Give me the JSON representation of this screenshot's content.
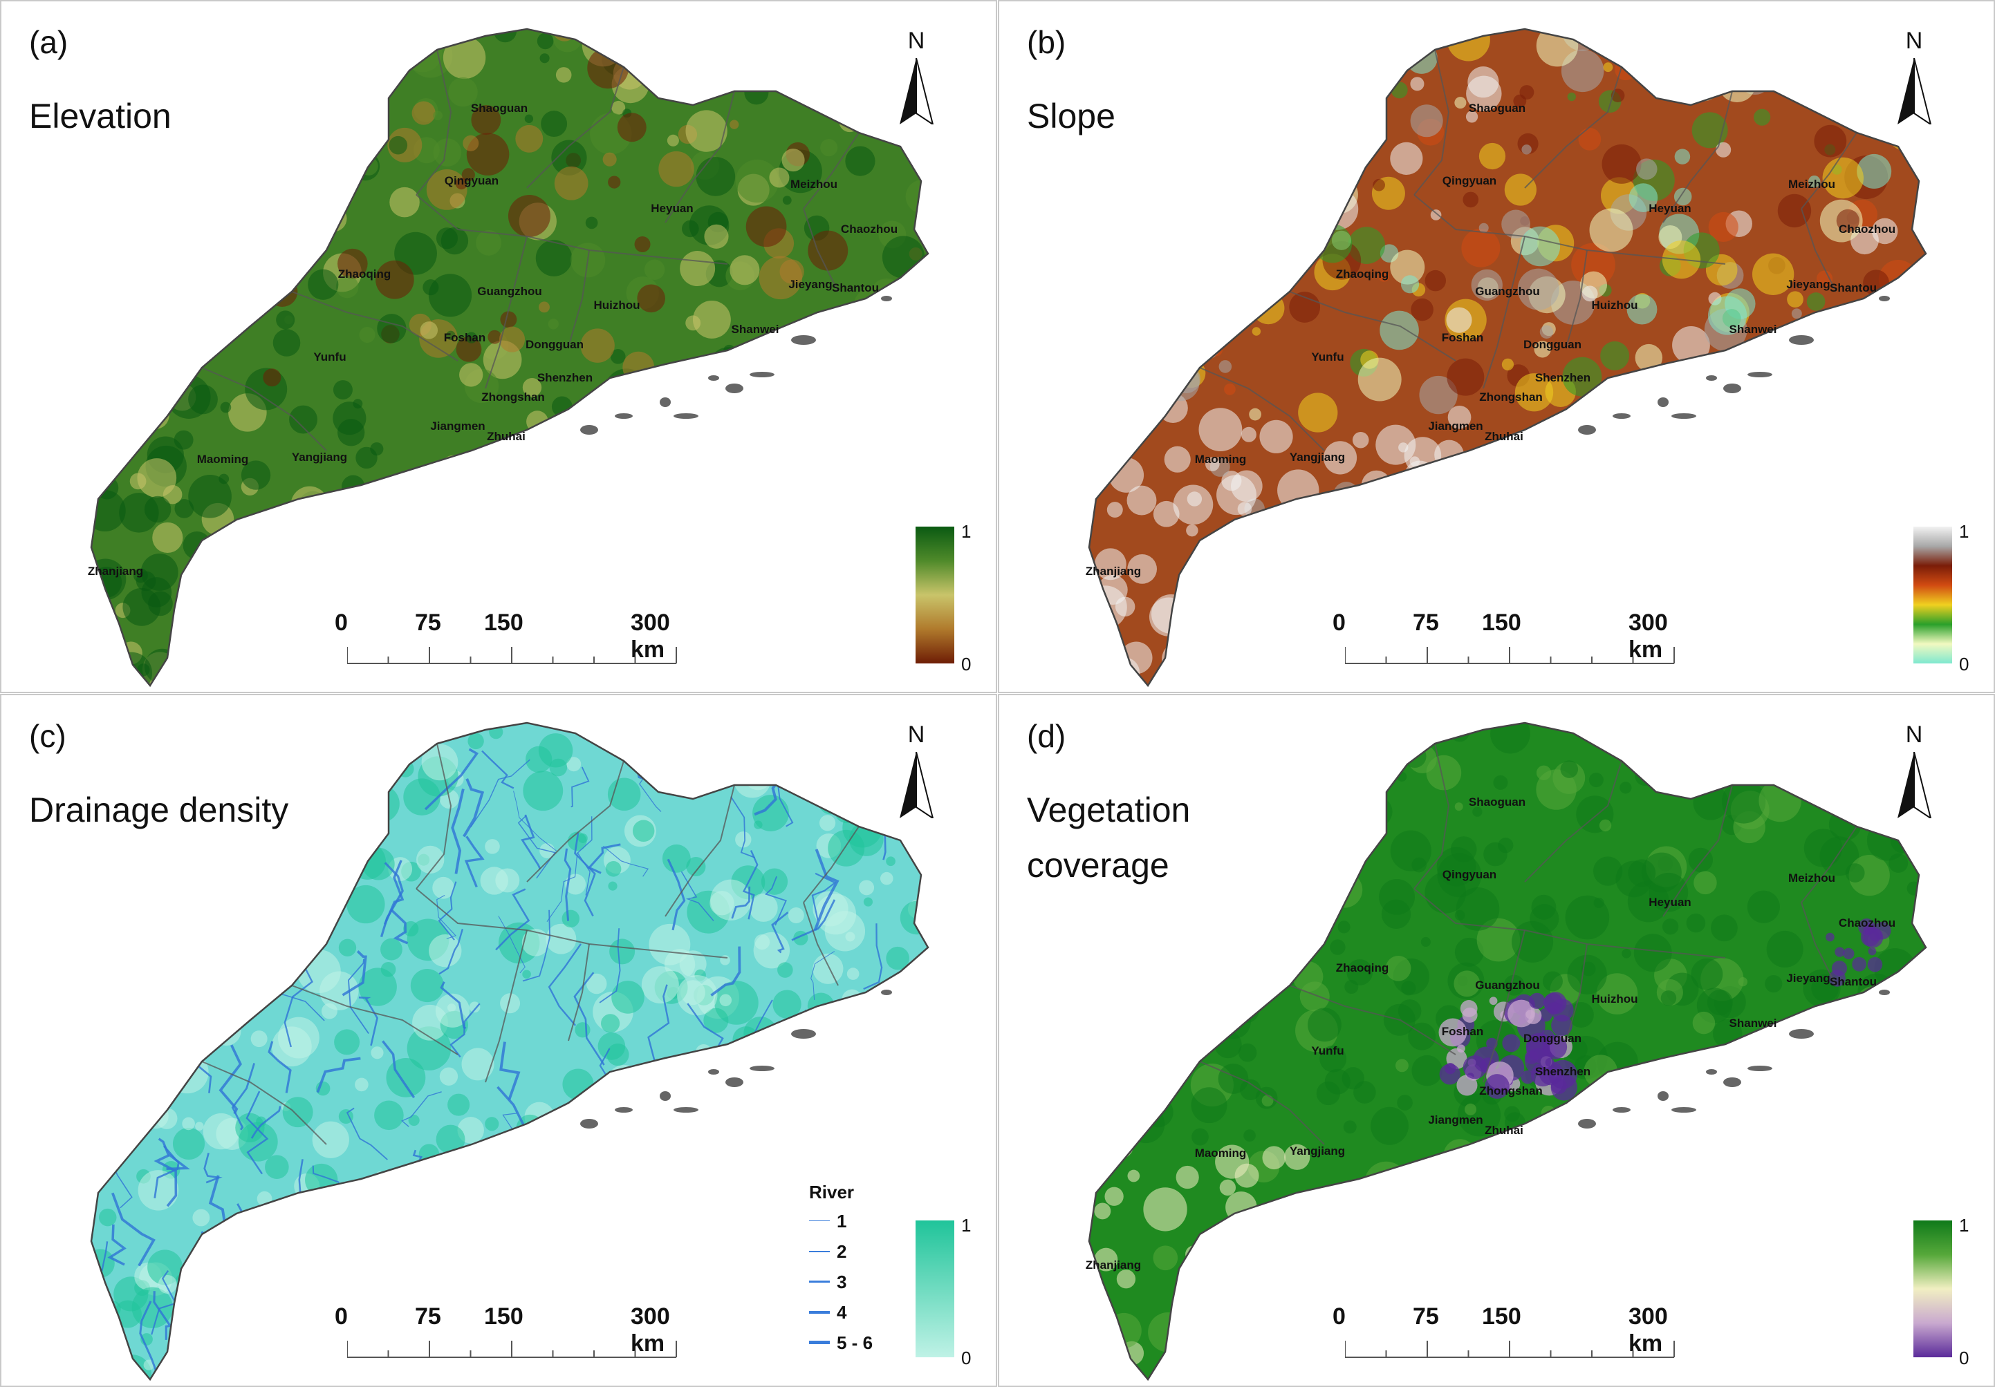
{
  "scale_bar": {
    "labels": [
      "0",
      "75",
      "150",
      "300 km"
    ]
  },
  "north_label": "N",
  "cities": [
    {
      "name": "Shaoguan"
    },
    {
      "name": "Qingyuan"
    },
    {
      "name": "Meizhou"
    },
    {
      "name": "Heyuan"
    },
    {
      "name": "Chaozhou"
    },
    {
      "name": "Zhaoqing"
    },
    {
      "name": "Guangzhou"
    },
    {
      "name": "Huizhou"
    },
    {
      "name": "Jieyang"
    },
    {
      "name": "Shantou"
    },
    {
      "name": "Foshan"
    },
    {
      "name": "Dongguan"
    },
    {
      "name": "Shanwei"
    },
    {
      "name": "Yunfu"
    },
    {
      "name": "Shenzhen"
    },
    {
      "name": "Zhongshan"
    },
    {
      "name": "Jiangmen"
    },
    {
      "name": "Zhuhai"
    },
    {
      "name": "Maoming"
    },
    {
      "name": "Yangjiang"
    },
    {
      "name": "Zhanjiang"
    }
  ],
  "panels": [
    {
      "id": "a",
      "label": "(a)",
      "title_lines": [
        "Elevation"
      ],
      "legend": {
        "hi": "1",
        "lo": "0",
        "colors": [
          "#0a5a12",
          "#4f8a2a",
          "#c9c46a",
          "#b07a2c",
          "#6e1d05"
        ]
      },
      "base_color": "#3f7f25",
      "show_cities": true
    },
    {
      "id": "b",
      "label": "(b)",
      "title_lines": [
        "Slope"
      ],
      "legend": {
        "hi": "1",
        "lo": "0",
        "colors": [
          "#f2f2f2",
          "#a8a8a8",
          "#7a1d08",
          "#d14b12",
          "#f0d020",
          "#2aa02a",
          "#f2f9c0",
          "#7fe8cf"
        ]
      },
      "base_color": "#a24a1e",
      "show_cities": true
    },
    {
      "id": "c",
      "label": "(c)",
      "title_lines": [
        "Drainage density"
      ],
      "legend": {
        "hi": "1",
        "lo": "0",
        "colors": [
          "#20c49a",
          "#bff2e6"
        ]
      },
      "base_color": "#6fd8d3",
      "show_cities": false,
      "river_legend": {
        "title": "River",
        "items": [
          "1",
          "2",
          "3",
          "4",
          "5 - 6"
        ]
      }
    },
    {
      "id": "d",
      "label": "(d)",
      "title_lines": [
        "Vegetation",
        "coverage"
      ],
      "legend": {
        "hi": "1",
        "lo": "0",
        "colors": [
          "#0f7a1a",
          "#56a83a",
          "#f1efc2",
          "#c9a9cf",
          "#5a2a9a"
        ]
      },
      "base_color": "#1f8a20",
      "show_cities": true
    }
  ]
}
